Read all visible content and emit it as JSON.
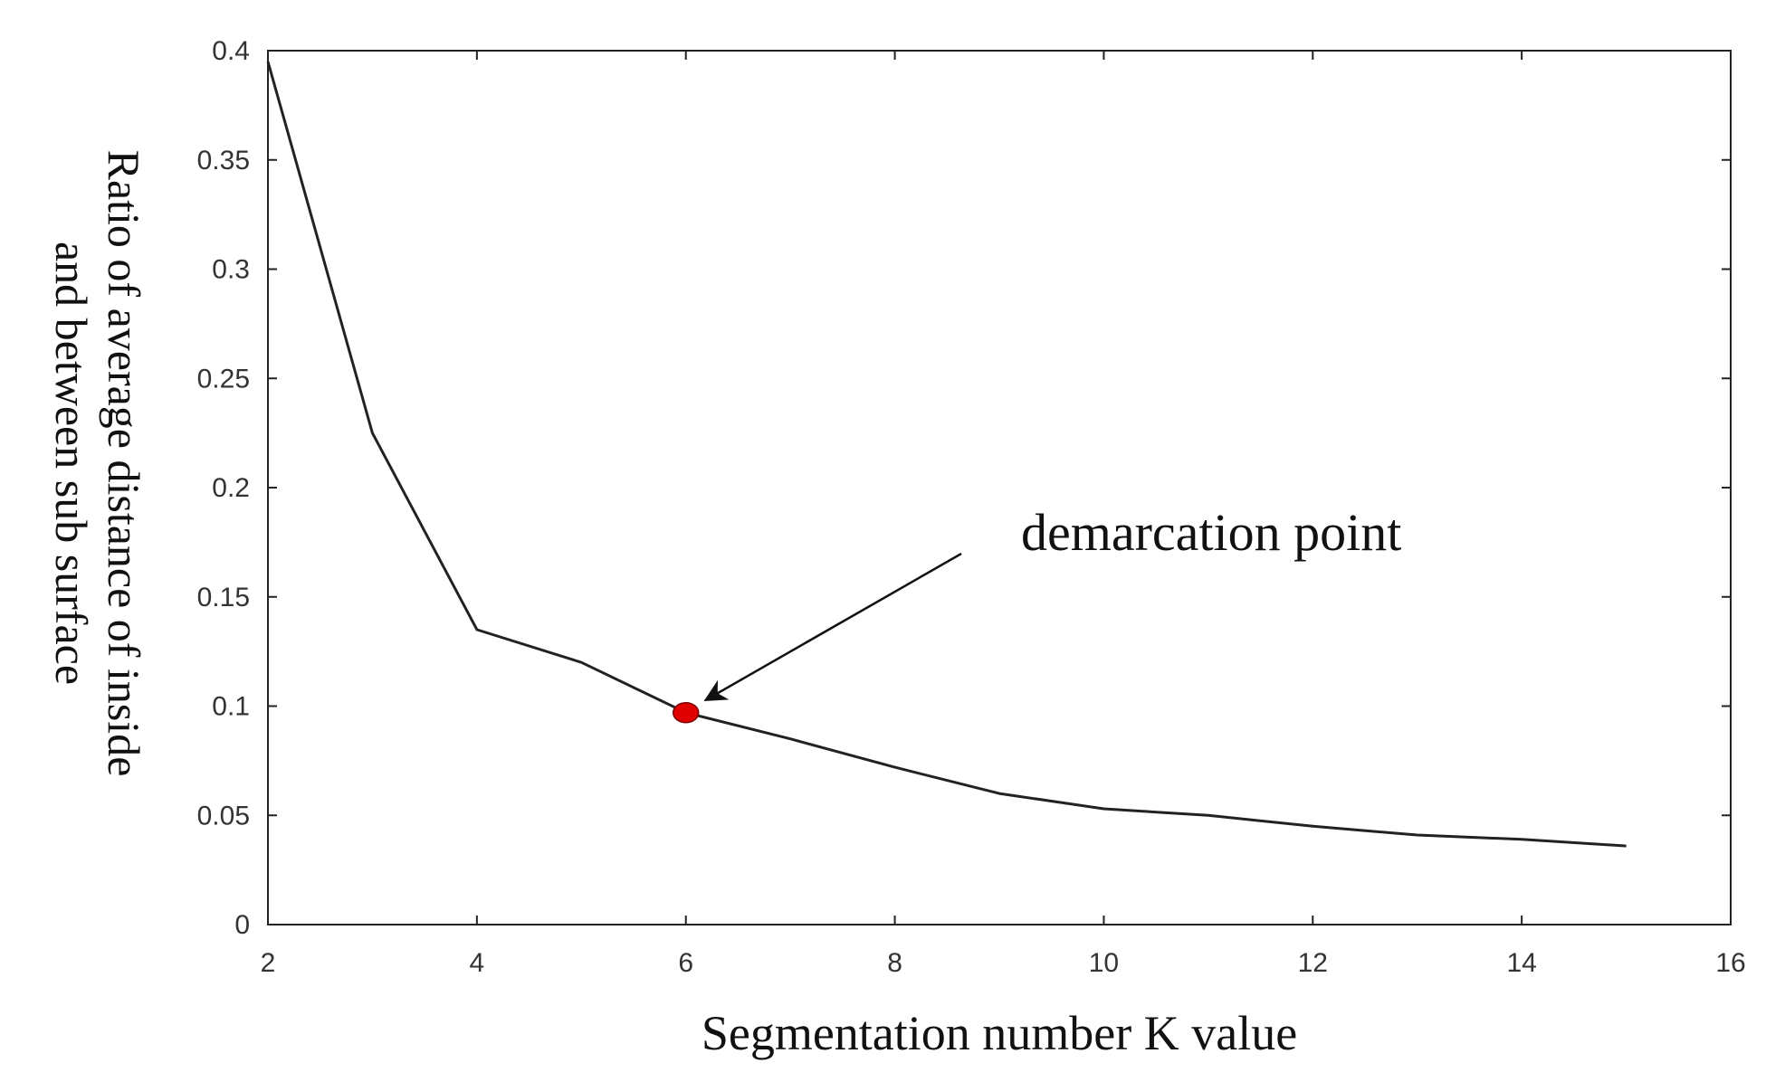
{
  "chart_data": {
    "type": "line",
    "title": "",
    "xlabel": "Segmentation number K value",
    "ylabel_lines": [
      "Ratio of average distance of inside",
      "and between sub surface"
    ],
    "xlim": [
      2,
      16
    ],
    "ylim": [
      0,
      0.4
    ],
    "xticks": [
      2,
      4,
      6,
      8,
      10,
      12,
      14,
      16
    ],
    "yticks": [
      0,
      0.05,
      0.1,
      0.15,
      0.2,
      0.25,
      0.3,
      0.35,
      0.4
    ],
    "xtick_labels": [
      "2",
      "4",
      "6",
      "8",
      "10",
      "12",
      "14",
      "16"
    ],
    "ytick_labels": [
      "0",
      "0.05",
      "0.1",
      "0.15",
      "0.2",
      "0.25",
      "0.3",
      "0.35",
      "0.4"
    ],
    "grid": false,
    "series": [
      {
        "x": [
          2,
          3,
          4,
          5,
          6,
          7,
          8,
          9,
          10,
          11,
          12,
          13,
          14,
          15
        ],
        "values": [
          0.395,
          0.225,
          0.135,
          0.12,
          0.097,
          0.085,
          0.072,
          0.06,
          0.053,
          0.05,
          0.045,
          0.041,
          0.039,
          0.036
        ],
        "color": "#222222"
      }
    ],
    "highlight_point": {
      "x": 6,
      "y": 0.097,
      "color": "#e00000"
    },
    "annotation": {
      "text": "demarcation point",
      "points_to": {
        "x": 6,
        "y": 0.097
      }
    }
  }
}
